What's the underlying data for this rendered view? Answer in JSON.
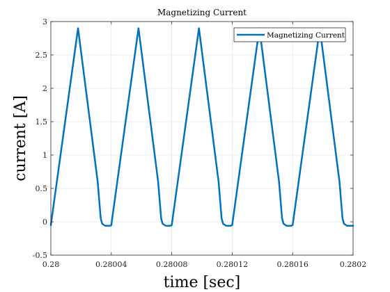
{
  "chart_data": {
    "type": "line",
    "title": "Magnetizing Current",
    "xlabel": "time [sec]",
    "ylabel": "current [A]",
    "xlim": [
      0.28,
      0.2802
    ],
    "ylim": [
      -0.5,
      3
    ],
    "grid": true,
    "legend_position": "top-right",
    "x_ticks": [
      0.28,
      0.28004,
      0.28008,
      0.28012,
      0.28016,
      0.2802
    ],
    "x_tick_labels": [
      "0.28",
      "0.28004",
      "0.28008",
      "0.28012",
      "0.28016",
      "0.2802"
    ],
    "y_ticks": [
      -0.5,
      0,
      0.5,
      1,
      1.5,
      2,
      2.5,
      3
    ],
    "y_tick_labels": [
      "-0.5",
      "0",
      "0.5",
      "1",
      "1.5",
      "2",
      "2.5",
      "3"
    ],
    "series": [
      {
        "name": "Magnetizing Current",
        "color": "#0072BD",
        "x": [
          0.28,
          0.280018,
          0.280031,
          0.280033,
          0.280034,
          0.280036,
          0.280039,
          0.28004,
          0.280058,
          0.280071,
          0.280073,
          0.280074,
          0.280076,
          0.280079,
          0.28008,
          0.280098,
          0.280111,
          0.280113,
          0.280114,
          0.280116,
          0.280119,
          0.28012,
          0.280138,
          0.280151,
          0.280153,
          0.280154,
          0.280156,
          0.280159,
          0.28016,
          0.280178,
          0.280191,
          0.280193,
          0.280194,
          0.280196,
          0.2802
        ],
        "y": [
          -0.05,
          2.9,
          0.6,
          0.05,
          -0.03,
          -0.06,
          -0.06,
          -0.05,
          2.9,
          0.6,
          0.05,
          -0.03,
          -0.06,
          -0.06,
          -0.05,
          2.9,
          0.6,
          0.05,
          -0.03,
          -0.06,
          -0.06,
          -0.05,
          2.9,
          0.6,
          0.05,
          -0.03,
          -0.06,
          -0.06,
          -0.05,
          2.9,
          0.6,
          0.05,
          -0.03,
          -0.06,
          -0.06
        ]
      }
    ]
  }
}
